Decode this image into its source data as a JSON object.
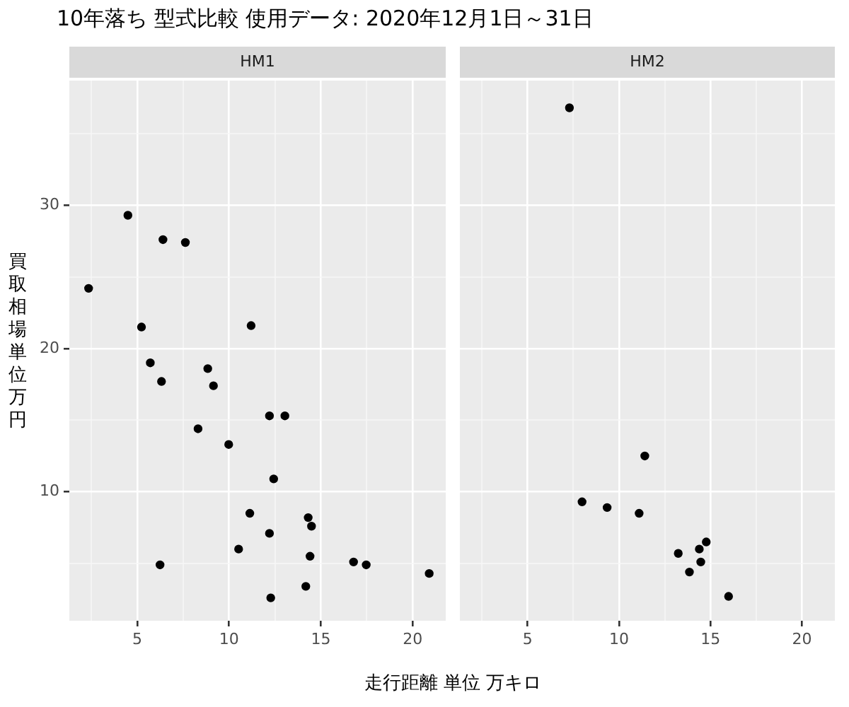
{
  "chart_data": [
    {
      "type": "scatter",
      "title": "10年落ち 型式比較 使用データ: 2020年12月1日～31日",
      "subtitle": "HM1",
      "xlabel": "走行距離 単位 万キロ",
      "ylabel": "買取相場単位万円",
      "color": "#000000",
      "marker": "circle",
      "grid": true,
      "x": [
        2.35,
        4.49,
        6.4,
        7.62,
        5.23,
        11.2,
        5.71,
        6.32,
        8.84,
        9.15,
        12.2,
        13.04,
        8.31,
        9.98,
        12.43,
        11.13,
        14.31,
        14.49,
        12.2,
        10.52,
        14.41,
        16.78,
        17.47,
        6.24,
        20.9,
        14.18,
        12.27
      ],
      "values": [
        24.2,
        29.3,
        27.6,
        27.4,
        21.5,
        21.6,
        19.0,
        17.7,
        18.6,
        17.4,
        15.3,
        15.3,
        14.4,
        13.3,
        10.9,
        8.5,
        8.2,
        7.6,
        7.1,
        6.0,
        5.5,
        5.1,
        4.9,
        4.9,
        4.3,
        3.4,
        2.6
      ],
      "xlim": [
        1.3,
        21.8
      ],
      "ylim": [
        1,
        38.7
      ],
      "xticks": [
        {
          "value": 2.5,
          "label": null
        },
        5,
        {
          "value": 7.5,
          "label": null
        },
        10,
        {
          "value": 12.5,
          "label": null
        },
        15,
        {
          "value": 17.5,
          "label": null
        },
        20
      ],
      "yticks": [
        {
          "value": 5,
          "label": null
        },
        10,
        {
          "value": 15,
          "label": null
        },
        20,
        {
          "value": 25,
          "label": null
        },
        30,
        {
          "value": 35,
          "label": null
        }
      ]
    },
    {
      "type": "scatter",
      "subtitle": "HM2",
      "color": "#000000",
      "marker": "circle",
      "grid": true,
      "tick_labels": "x",
      "x": [
        7.29,
        11.41,
        7.98,
        9.35,
        11.1,
        14.77,
        14.39,
        13.24,
        14.47,
        13.85,
        15.99
      ],
      "values": [
        36.8,
        12.5,
        9.3,
        8.9,
        8.5,
        6.5,
        6.0,
        5.7,
        5.1,
        4.4,
        2.7
      ],
      "xlim": [
        1.3,
        21.8
      ],
      "ylim": [
        1,
        38.7
      ],
      "xticks": [
        {
          "value": 2.5,
          "label": null
        },
        5,
        {
          "value": 7.5,
          "label": null
        },
        10,
        {
          "value": 12.5,
          "label": null
        },
        15,
        {
          "value": 17.5,
          "label": null
        },
        20
      ],
      "yticks": [
        {
          "value": 5,
          "label": null
        },
        10,
        {
          "value": 15,
          "label": null
        },
        20,
        {
          "value": 25,
          "label": null
        },
        30,
        {
          "value": 35,
          "label": null
        }
      ]
    }
  ]
}
